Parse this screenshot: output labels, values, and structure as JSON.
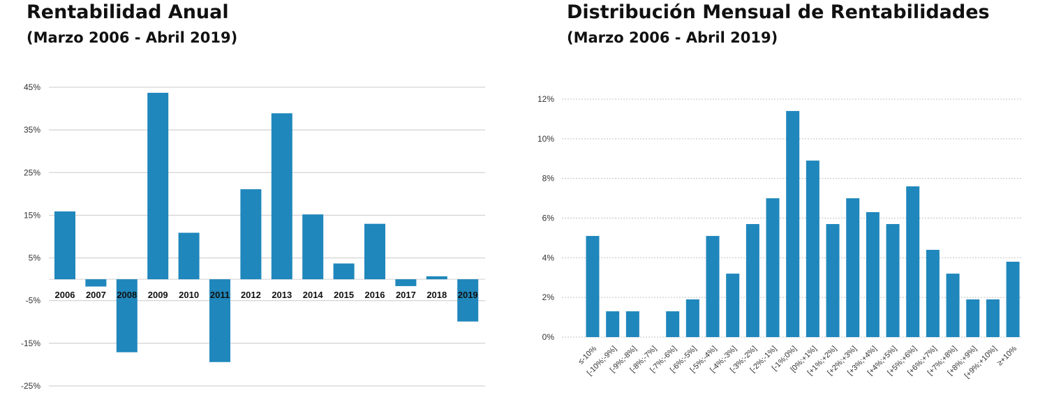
{
  "chart_data": [
    {
      "type": "bar",
      "title": "Rentabilidad Anual",
      "subtitle": "(Marzo 2006 - Abril 2019)",
      "categories": [
        "2006",
        "2007",
        "2008",
        "2009",
        "2010",
        "2011",
        "2012",
        "2013",
        "2014",
        "2015",
        "2016",
        "2017",
        "2018",
        "2019"
      ],
      "values": [
        15.9,
        -1.7,
        -17.1,
        43.7,
        10.9,
        -19.4,
        21.1,
        38.9,
        15.2,
        3.7,
        13.0,
        -1.6,
        0.7,
        -9.9
      ],
      "unit": "%",
      "yticks": [
        45,
        35,
        25,
        15,
        5,
        -5,
        -15,
        -25
      ],
      "ytick_labels": [
        "45%",
        "35%",
        "25%",
        "15%",
        "5%",
        "-5%",
        "-15%",
        "-25%"
      ],
      "ylim": [
        -25,
        45
      ],
      "grid": true,
      "color": "#1f87bc"
    },
    {
      "type": "bar",
      "title": "Distribución Mensual de Rentabilidades",
      "subtitle": "(Marzo 2006 - Abril 2019)",
      "categories": [
        "≤-10%",
        "[-10%;-9%]",
        "[-9%;-8%]",
        "[-8%;-7%]",
        "[-7%;-6%]",
        "[-6%;-5%]",
        "[-5%;-4%]",
        "[-4%;-3%]",
        "[-3%;-2%]",
        "[-2%;-1%]",
        "[-1%;0%]",
        "[0%;+1%]",
        "[+1%;+2%]",
        "[+2%;+3%]",
        "[+3%;+4%]",
        "[+4%;+5%]",
        "[+5%;+6%]",
        "[+6%;+7%]",
        "[+7%;+8%]",
        "[+8%;+9%]",
        "[+9%;+10%]",
        "≥+10%"
      ],
      "values": [
        5.1,
        1.3,
        1.3,
        0,
        1.3,
        1.9,
        5.1,
        3.2,
        5.7,
        7.0,
        11.4,
        8.9,
        5.7,
        7.0,
        6.3,
        5.7,
        7.6,
        4.4,
        3.2,
        1.9,
        1.9,
        3.8
      ],
      "unit": "%",
      "yticks": [
        0,
        2,
        4,
        6,
        8,
        10,
        12
      ],
      "ytick_labels": [
        "0%",
        "2%",
        "4%",
        "6%",
        "8%",
        "10%",
        "12%"
      ],
      "ylim": [
        0,
        12
      ],
      "grid": true,
      "color": "#1f87bc"
    }
  ]
}
